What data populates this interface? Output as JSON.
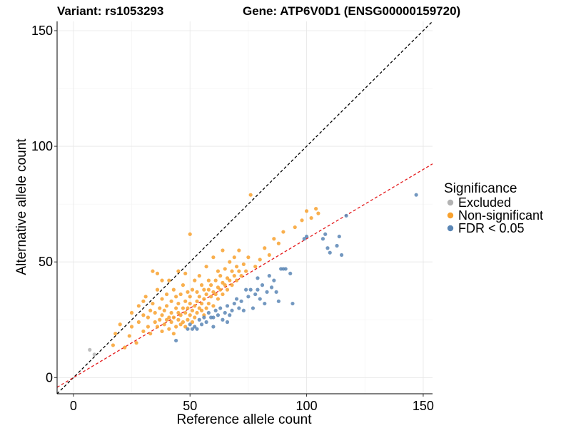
{
  "chart_data": {
    "type": "scatter",
    "title_left": "Variant: rs1053293",
    "title_right": "Gene: ATP6V0D1 (ENSG00000159720)",
    "xlabel": "Reference allele count",
    "ylabel": "Alternative allele count",
    "xlim": [
      -7,
      154
    ],
    "ylim": [
      -7,
      154
    ],
    "xticks": [
      0,
      50,
      100,
      150
    ],
    "yticks": [
      0,
      50,
      100,
      150
    ],
    "legend": {
      "title": "Significance",
      "position": "right",
      "items": [
        {
          "key": "excluded",
          "label": "Excluded",
          "color": "#b3b3b3"
        },
        {
          "key": "nonsig",
          "label": "Non-significant",
          "color": "#f8a12e"
        },
        {
          "key": "sig",
          "label": "FDR < 0.05",
          "color": "#5a86b5"
        }
      ]
    },
    "lines": [
      {
        "name": "identity",
        "slope": 1,
        "intercept": 0,
        "color": "#000000"
      },
      {
        "name": "fit",
        "slope": 0.6,
        "intercept": 0,
        "color": "#e41a1c"
      }
    ],
    "series": [
      {
        "name": "Excluded",
        "color": "#b3b3b3",
        "points": [
          [
            7,
            12
          ],
          [
            9,
            10
          ]
        ]
      },
      {
        "name": "Non-significant",
        "color": "#f8a12e",
        "points": [
          [
            17,
            14
          ],
          [
            18,
            19
          ],
          [
            20,
            23
          ],
          [
            22,
            13
          ],
          [
            24,
            18
          ],
          [
            25,
            22
          ],
          [
            25,
            28
          ],
          [
            27,
            15
          ],
          [
            28,
            24
          ],
          [
            28,
            31
          ],
          [
            30,
            20
          ],
          [
            30,
            27
          ],
          [
            31,
            35
          ],
          [
            32,
            22
          ],
          [
            32,
            26
          ],
          [
            33,
            19
          ],
          [
            33,
            29
          ],
          [
            34,
            32
          ],
          [
            34,
            46
          ],
          [
            35,
            24
          ],
          [
            35,
            28
          ],
          [
            36,
            22
          ],
          [
            36,
            38
          ],
          [
            37,
            25
          ],
          [
            37,
            30
          ],
          [
            38,
            20
          ],
          [
            38,
            27
          ],
          [
            38,
            34
          ],
          [
            39,
            23
          ],
          [
            39,
            29
          ],
          [
            40,
            25
          ],
          [
            40,
            31
          ],
          [
            40,
            36
          ],
          [
            41,
            21
          ],
          [
            41,
            26
          ],
          [
            41,
            42
          ],
          [
            42,
            24
          ],
          [
            42,
            28
          ],
          [
            42,
            33
          ],
          [
            43,
            19
          ],
          [
            43,
            26
          ],
          [
            43,
            38
          ],
          [
            44,
            22
          ],
          [
            44,
            30
          ],
          [
            44,
            35
          ],
          [
            45,
            25
          ],
          [
            45,
            28
          ],
          [
            45,
            32
          ],
          [
            45,
            46
          ],
          [
            46,
            23
          ],
          [
            46,
            27
          ],
          [
            46,
            36
          ],
          [
            47,
            24
          ],
          [
            47,
            30
          ],
          [
            47,
            40
          ],
          [
            48,
            22
          ],
          [
            48,
            28
          ],
          [
            48,
            33
          ],
          [
            48,
            45
          ],
          [
            49,
            25
          ],
          [
            49,
            30
          ],
          [
            49,
            37
          ],
          [
            50,
            27
          ],
          [
            50,
            32
          ],
          [
            50,
            35
          ],
          [
            50,
            62
          ],
          [
            51,
            24
          ],
          [
            51,
            29
          ],
          [
            51,
            38
          ],
          [
            52,
            26
          ],
          [
            52,
            31
          ],
          [
            52,
            42
          ],
          [
            53,
            28
          ],
          [
            53,
            33
          ],
          [
            53,
            37
          ],
          [
            54,
            30
          ],
          [
            54,
            35
          ],
          [
            54,
            44
          ],
          [
            55,
            29
          ],
          [
            55,
            32
          ],
          [
            55,
            40
          ],
          [
            56,
            27
          ],
          [
            56,
            34
          ],
          [
            56,
            38
          ],
          [
            57,
            30
          ],
          [
            57,
            36
          ],
          [
            57,
            48
          ],
          [
            58,
            32
          ],
          [
            58,
            38
          ],
          [
            58,
            42
          ],
          [
            59,
            35
          ],
          [
            59,
            40
          ],
          [
            60,
            31
          ],
          [
            60,
            37
          ],
          [
            60,
            52
          ],
          [
            61,
            36
          ],
          [
            61,
            42
          ],
          [
            62,
            34
          ],
          [
            62,
            39
          ],
          [
            62,
            46
          ],
          [
            63,
            38
          ],
          [
            63,
            44
          ],
          [
            64,
            36
          ],
          [
            64,
            41
          ],
          [
            64,
            55
          ],
          [
            65,
            40
          ],
          [
            65,
            47
          ],
          [
            66,
            38
          ],
          [
            66,
            43
          ],
          [
            67,
            42
          ],
          [
            67,
            50
          ],
          [
            68,
            40
          ],
          [
            68,
            46
          ],
          [
            69,
            44
          ],
          [
            69,
            52
          ],
          [
            70,
            42
          ],
          [
            70,
            48
          ],
          [
            71,
            46
          ],
          [
            71,
            55
          ],
          [
            72,
            44
          ],
          [
            73,
            49
          ],
          [
            74,
            46
          ],
          [
            75,
            52
          ],
          [
            76,
            79
          ],
          [
            78,
            48
          ],
          [
            80,
            51
          ],
          [
            82,
            56
          ],
          [
            84,
            53
          ],
          [
            86,
            60
          ],
          [
            88,
            58
          ],
          [
            90,
            63
          ],
          [
            95,
            65
          ],
          [
            98,
            68
          ],
          [
            100,
            72
          ],
          [
            102,
            69
          ],
          [
            104,
            73
          ],
          [
            105,
            71
          ],
          [
            38,
            42
          ],
          [
            36,
            45
          ],
          [
            30,
            33
          ]
        ]
      },
      {
        "name": "FDR < 0.05",
        "color": "#5a86b5",
        "points": [
          [
            44,
            16
          ],
          [
            49,
            21
          ],
          [
            50,
            23
          ],
          [
            51,
            21
          ],
          [
            52,
            22
          ],
          [
            53,
            21
          ],
          [
            54,
            25
          ],
          [
            55,
            23
          ],
          [
            56,
            26
          ],
          [
            57,
            24
          ],
          [
            58,
            28
          ],
          [
            59,
            26
          ],
          [
            60,
            22
          ],
          [
            61,
            29
          ],
          [
            62,
            27
          ],
          [
            63,
            30
          ],
          [
            64,
            25
          ],
          [
            65,
            28
          ],
          [
            66,
            31
          ],
          [
            67,
            27
          ],
          [
            68,
            29
          ],
          [
            69,
            32
          ],
          [
            70,
            34
          ],
          [
            71,
            30
          ],
          [
            72,
            33
          ],
          [
            74,
            38
          ],
          [
            75,
            35
          ],
          [
            76,
            38
          ],
          [
            77,
            30
          ],
          [
            78,
            36
          ],
          [
            79,
            38
          ],
          [
            80,
            34
          ],
          [
            81,
            40
          ],
          [
            82,
            32
          ],
          [
            83,
            37
          ],
          [
            84,
            44
          ],
          [
            85,
            39
          ],
          [
            86,
            42
          ],
          [
            87,
            37
          ],
          [
            88,
            33
          ],
          [
            90,
            47
          ],
          [
            91,
            47
          ],
          [
            93,
            45
          ],
          [
            94,
            32
          ],
          [
            99,
            60
          ],
          [
            100,
            61
          ],
          [
            108,
            62
          ],
          [
            107,
            60
          ],
          [
            109,
            56
          ],
          [
            110,
            54
          ],
          [
            113,
            57
          ],
          [
            114,
            61
          ],
          [
            115,
            53
          ],
          [
            117,
            70
          ],
          [
            147,
            79
          ],
          [
            60,
            26
          ],
          [
            66,
            24
          ],
          [
            73,
            29
          ],
          [
            79,
            43
          ],
          [
            89,
            47
          ]
        ]
      }
    ]
  }
}
